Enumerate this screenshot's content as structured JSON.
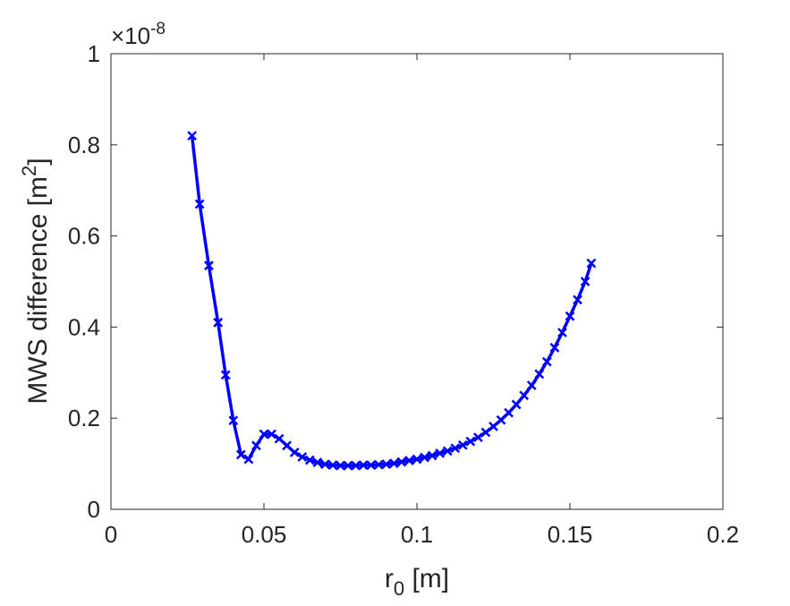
{
  "chart_data": {
    "type": "line",
    "title": "",
    "xlabel": {
      "text": "r",
      "sub": "0",
      "unit": " [m]"
    },
    "ylabel": {
      "text": "MWS difference [m",
      "sup": "2",
      "close": "]"
    },
    "xlim": [
      0,
      0.2
    ],
    "ylim": [
      0,
      1
    ],
    "xticks": [
      0,
      0.05,
      0.1,
      0.15,
      0.2
    ],
    "xtick_labels": [
      "0",
      "0.05",
      "0.1",
      "0.15",
      "0.2"
    ],
    "yticks": [
      0,
      0.2,
      0.4,
      0.6,
      0.8,
      1
    ],
    "ytick_labels": [
      "0",
      "0.2",
      "0.4",
      "0.6",
      "0.8",
      "1"
    ],
    "y_exponent": {
      "base": "×10",
      "exp": "-8"
    },
    "grid": false,
    "color": "#0000ff",
    "marker": "x",
    "series": [
      {
        "x": [
          0.0265,
          0.029,
          0.032,
          0.035,
          0.0375,
          0.04,
          0.0425,
          0.045,
          0.0475,
          0.05,
          0.0525,
          0.055,
          0.0575,
          0.06,
          0.0625,
          0.065,
          0.0675,
          0.07,
          0.0725,
          0.075,
          0.0775,
          0.08,
          0.0825,
          0.085,
          0.0875,
          0.09,
          0.0925,
          0.095,
          0.0975,
          0.1,
          0.1025,
          0.105,
          0.1075,
          0.11,
          0.1125,
          0.115,
          0.1175,
          0.12,
          0.1225,
          0.125,
          0.1275,
          0.13,
          0.1325,
          0.135,
          0.1375,
          0.14,
          0.1425,
          0.145,
          0.1475,
          0.15,
          0.1525,
          0.155,
          0.157
        ],
        "y": [
          0.82,
          0.67,
          0.535,
          0.41,
          0.295,
          0.195,
          0.12,
          0.11,
          0.14,
          0.165,
          0.165,
          0.155,
          0.14,
          0.125,
          0.115,
          0.108,
          0.103,
          0.099,
          0.097,
          0.096,
          0.096,
          0.096,
          0.097,
          0.097,
          0.098,
          0.099,
          0.101,
          0.104,
          0.107,
          0.11,
          0.114,
          0.118,
          0.123,
          0.128,
          0.134,
          0.141,
          0.149,
          0.158,
          0.169,
          0.182,
          0.196,
          0.212,
          0.23,
          0.25,
          0.272,
          0.297,
          0.324,
          0.355,
          0.388,
          0.424,
          0.46,
          0.5,
          0.54
        ]
      }
    ]
  }
}
